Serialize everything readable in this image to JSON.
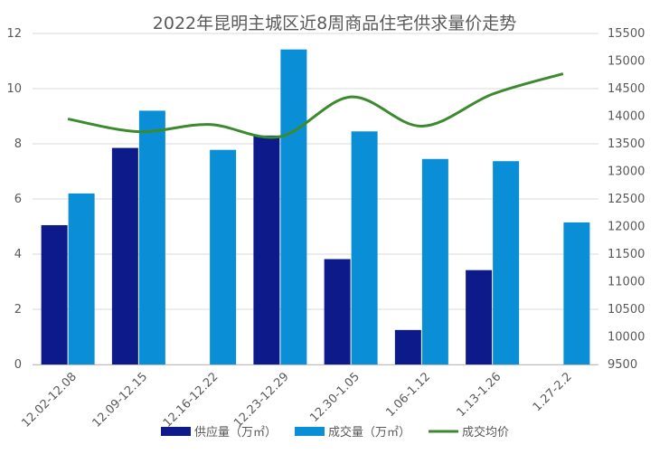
{
  "chart_data": {
    "type": "bar",
    "title": "2022年昆明主城区近8周商品住宅供求量价走势",
    "categories": [
      "12.02-12.08",
      "12.09-12.15",
      "12.16-12.22",
      "12.23-12.29",
      "12.30-1.05",
      "1.06-1.12",
      "1.13-1.26",
      "1.27-2.2"
    ],
    "series": [
      {
        "name": "供应量（万㎡）",
        "type": "bar",
        "axis": "left",
        "color": "#0c1a8a",
        "values": [
          5.05,
          7.85,
          null,
          8.3,
          3.82,
          1.25,
          3.42,
          null
        ]
      },
      {
        "name": "成交量（万㎡）",
        "type": "bar",
        "axis": "left",
        "color": "#0a8fd6",
        "values": [
          6.2,
          9.2,
          7.78,
          11.42,
          8.45,
          7.45,
          7.37,
          5.15
        ]
      },
      {
        "name": "成交均价",
        "type": "line",
        "axis": "right",
        "color": "#3b8a2e",
        "smooth": true,
        "values": [
          13950,
          13720,
          13850,
          13630,
          14350,
          13820,
          14400,
          14770
        ]
      }
    ],
    "y_left": {
      "min": 0,
      "max": 12,
      "ticks": [
        0,
        2,
        4,
        6,
        8,
        10,
        12
      ]
    },
    "y_right": {
      "min": 9500,
      "max": 15500,
      "ticks": [
        9500,
        10000,
        10500,
        11000,
        11500,
        12000,
        12500,
        13000,
        13500,
        14000,
        14500,
        15000,
        15500
      ]
    },
    "grid": true,
    "legend_position": "bottom"
  }
}
